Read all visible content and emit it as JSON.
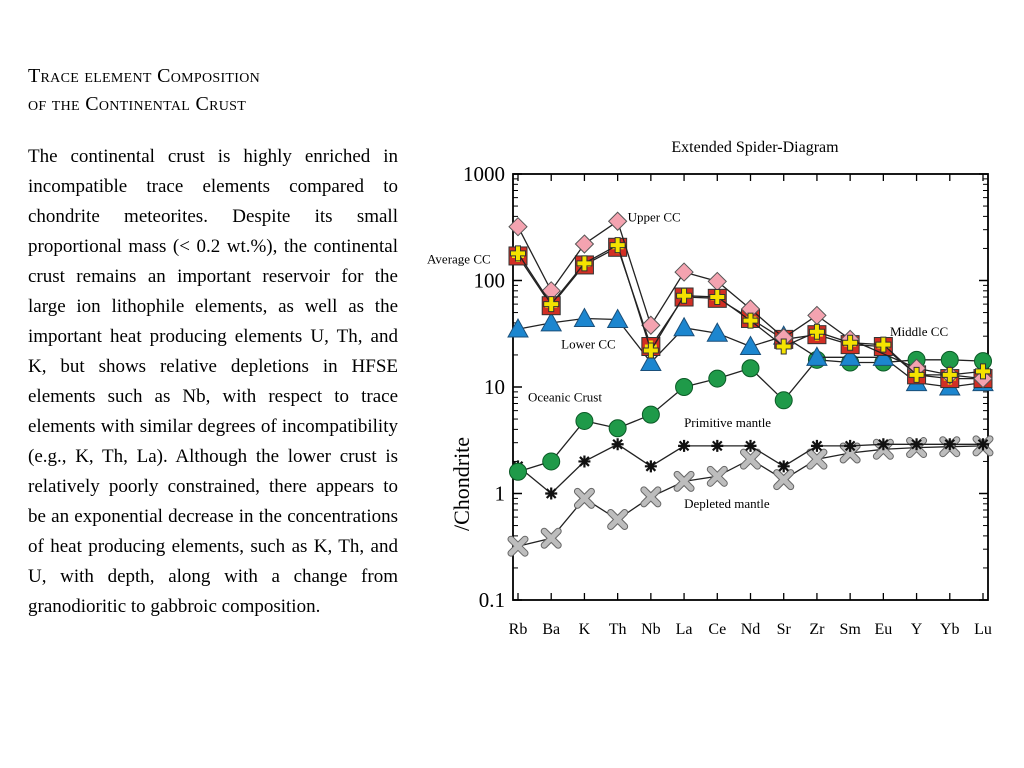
{
  "slide": {
    "title_line1": "Trace element Composition",
    "title_line2": "of the Continental Crust",
    "body": "The continental crust is highly enriched in incompatible trace elements compared to chondrite meteorites. Despite its small proportional mass (< 0.2 wt.%), the continental crust remains an important reservoir for the large ion lithophile elements, as well as the important heat producing elements U, Th, and K, but shows relative depletions in HFSE elements such as Nb, with respect to trace elements with similar degrees of incompatibility (e.g., K, Th, La).  Although the lower crust is relatively poorly constrained, there appears to be an exponential decrease in the concentrations of heat producing elements, such as K, Th, and U, with depth, along with a change from granodioritic to gabbroic composition."
  },
  "chart_data": {
    "type": "line",
    "title": "Extended Spider-Diagram",
    "xlabel": "",
    "ylabel": "/Chondrite",
    "y_scale": "log",
    "ylim": [
      0.1,
      1000
    ],
    "y_ticks": [
      "0.1",
      "1",
      "10",
      "100",
      "1000"
    ],
    "categories": [
      "Rb",
      "Ba",
      "K",
      "Th",
      "Nb",
      "La",
      "Ce",
      "Nd",
      "Sr",
      "Zr",
      "Sm",
      "Eu",
      "Y",
      "Yb",
      "Lu"
    ],
    "grid": false,
    "series": [
      {
        "name": "Upper CC",
        "marker": "diamond",
        "color": "#f4a3b0",
        "values": [
          320,
          80,
          220,
          360,
          38,
          120,
          98,
          54,
          29,
          47,
          28,
          null,
          15,
          13,
          12
        ],
        "label_pos": [
          4,
          360
        ]
      },
      {
        "name": "Average CC",
        "marker": "square-cross",
        "color": "#d22f24",
        "values": [
          170,
          58,
          140,
          205,
          24,
          70,
          68,
          44,
          28,
          31,
          25,
          24,
          13,
          12,
          12
        ],
        "label_pos": [
          0,
          170
        ]
      },
      {
        "name": "Middle CC",
        "marker": "cross",
        "color": "#f5e300",
        "values": [
          180,
          60,
          145,
          215,
          22,
          72,
          70,
          42,
          24,
          33,
          26,
          25,
          13,
          13,
          14
        ],
        "label_pos": [
          11.2,
          33
        ]
      },
      {
        "name": "Lower CC",
        "marker": "triangle",
        "color": "#1c86cf",
        "values": [
          35,
          40,
          44,
          43,
          17,
          36,
          32,
          24,
          30,
          19,
          19,
          19,
          11,
          10,
          11
        ],
        "label_pos": [
          1.5,
          28
        ]
      },
      {
        "name": "Oceanic Crust",
        "marker": "circle",
        "color": "#1f9a49",
        "values": [
          1.6,
          2.0,
          4.8,
          4.1,
          5.5,
          10,
          12,
          15,
          7.5,
          18,
          17,
          17,
          18,
          18,
          17.5
        ],
        "label_pos": [
          0,
          8.5
        ]
      },
      {
        "name": "Primitive mantle",
        "marker": "star",
        "color": "#111111",
        "values": [
          1.8,
          1.0,
          2.0,
          2.9,
          1.8,
          2.8,
          2.8,
          2.8,
          1.8,
          2.8,
          2.8,
          2.9,
          2.9,
          2.9,
          2.9
        ],
        "label_pos": [
          5.0,
          4.6
        ]
      },
      {
        "name": "Depleted mantle",
        "marker": "x",
        "color": "#bdbdbd",
        "values": [
          0.32,
          0.38,
          0.9,
          0.57,
          0.93,
          1.3,
          1.45,
          2.1,
          1.35,
          2.1,
          2.4,
          2.6,
          2.7,
          2.75,
          2.8
        ],
        "label_pos": [
          5.0,
          0.8
        ]
      }
    ]
  }
}
